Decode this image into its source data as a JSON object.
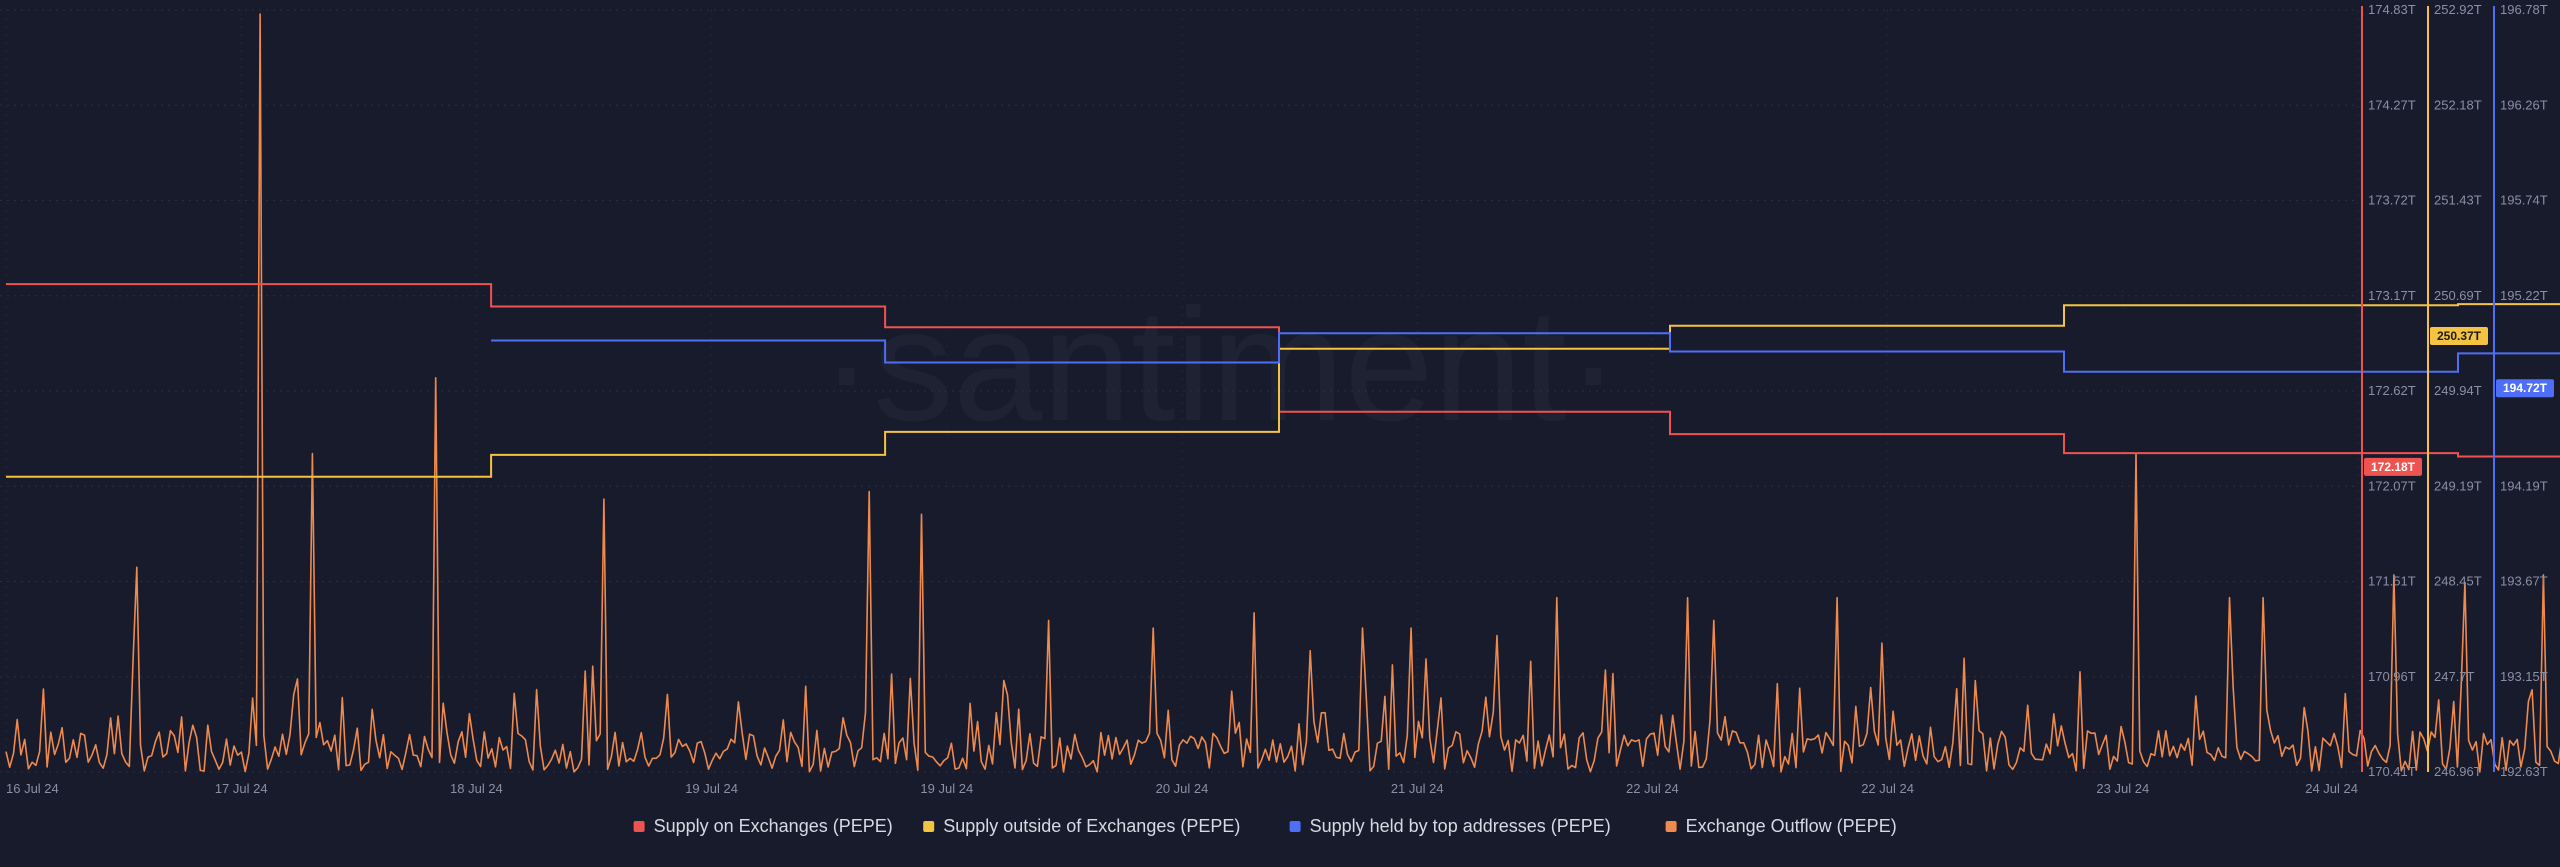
{
  "watermark": "·santiment·",
  "chart_data": {
    "type": "line",
    "x_ticks": [
      "16 Jul 24",
      "17 Jul 24",
      "18 Jul 24",
      "19 Jul 24",
      "19 Jul 24",
      "20 Jul 24",
      "21 Jul 24",
      "22 Jul 24",
      "22 Jul 24",
      "23 Jul 24",
      "24 Jul 24"
    ],
    "x_range": [
      0,
      8
    ],
    "grid": true,
    "legend_position": "bottom",
    "axes": {
      "left": {
        "ticks": [
          "174.83T",
          "174.27T",
          "173.72T",
          "173.17T",
          "172.62T",
          "172.07T",
          "171.51T",
          "170.96T",
          "170.41T"
        ],
        "range": [
          170.41,
          174.83
        ],
        "color": "#ef5350"
      },
      "mid": {
        "ticks": [
          "252.92T",
          "252.18T",
          "251.43T",
          "250.69T",
          "249.94T",
          "249.19T",
          "248.45T",
          "247.7T",
          "246.96T"
        ],
        "range": [
          246.96,
          252.92
        ],
        "color": "#f5c342"
      },
      "right": {
        "ticks": [
          "196.78T",
          "196.26T",
          "195.74T",
          "195.22T",
          "194.72T",
          "194.19T",
          "193.67T",
          "193.15T",
          "192.63T"
        ],
        "range": [
          192.63,
          196.78
        ],
        "color": "#4f6ef7"
      }
    },
    "series": [
      {
        "name": "Supply on Exchanges (PEPE)",
        "color": "#ef5350",
        "axis": "left",
        "last_value": "172.18T",
        "steps": [
          [
            0,
            173.24
          ],
          [
            1.65,
            173.11
          ],
          [
            2.99,
            172.99
          ],
          [
            4.33,
            172.5
          ],
          [
            5.66,
            172.37
          ],
          [
            7.0,
            172.26
          ],
          [
            8.34,
            172.24
          ],
          [
            8.73,
            172.26
          ],
          [
            9.62,
            172.3
          ],
          [
            9.66,
            172.3
          ]
        ]
      },
      {
        "name": "Supply outside of Exchanges (PEPE)",
        "color": "#f5c342",
        "axis": "mid",
        "last_value": "250.37T",
        "steps": [
          [
            0,
            249.27
          ],
          [
            1.65,
            249.44
          ],
          [
            2.99,
            249.62
          ],
          [
            4.33,
            250.27
          ],
          [
            5.66,
            250.45
          ],
          [
            7.0,
            250.61
          ],
          [
            8.34,
            250.62
          ],
          [
            8.73,
            250.56
          ],
          [
            9.62,
            250.56
          ],
          [
            9.66,
            250.56
          ]
        ]
      },
      {
        "name": "Supply held by top addresses (PEPE)",
        "color": "#4f6ef7",
        "axis": "right",
        "last_value": "194.72T",
        "steps": [
          [
            1.65,
            194.98
          ],
          [
            2.99,
            194.86
          ],
          [
            4.33,
            195.02
          ],
          [
            5.66,
            194.92
          ],
          [
            7.0,
            194.81
          ],
          [
            8.34,
            194.91
          ],
          [
            9.62,
            194.91
          ]
        ]
      },
      {
        "name": "Exchange Outflow (PEPE)",
        "color": "#ef8a4f",
        "axis": "outflow",
        "peaks": [
          [
            0.45,
            0.27
          ],
          [
            0.86,
            1.0
          ],
          [
            1.04,
            0.42
          ],
          [
            1.46,
            0.52
          ],
          [
            2.03,
            0.36
          ],
          [
            2.93,
            0.37
          ],
          [
            3.12,
            0.34
          ],
          [
            3.55,
            0.2
          ],
          [
            3.9,
            0.19
          ],
          [
            4.25,
            0.21
          ],
          [
            4.43,
            0.16
          ],
          [
            4.62,
            0.19
          ],
          [
            4.78,
            0.19
          ],
          [
            5.07,
            0.18
          ],
          [
            5.28,
            0.23
          ],
          [
            5.72,
            0.23
          ],
          [
            5.81,
            0.2
          ],
          [
            6.23,
            0.23
          ],
          [
            6.38,
            0.17
          ],
          [
            6.66,
            0.15
          ],
          [
            7.25,
            0.42
          ],
          [
            7.56,
            0.23
          ],
          [
            7.68,
            0.23
          ],
          [
            8.12,
            0.26
          ],
          [
            8.36,
            0.25
          ],
          [
            8.63,
            0.26
          ],
          [
            8.92,
            0.2
          ]
        ]
      }
    ]
  }
}
